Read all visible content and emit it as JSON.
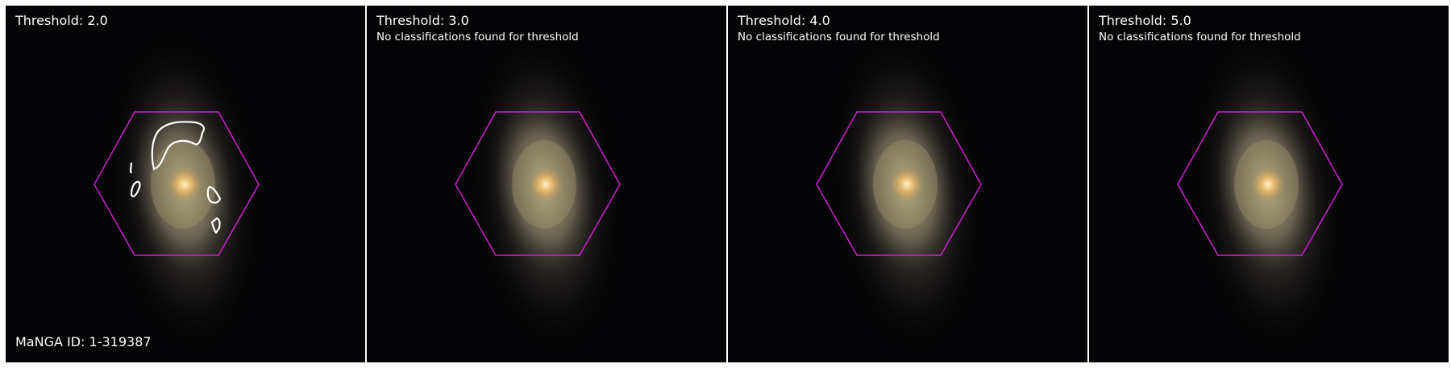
{
  "panels": [
    {
      "title": "Threshold: 2.0",
      "note": "",
      "footer": "MaNGA ID: 1-319387",
      "has_contours": true
    },
    {
      "title": "Threshold: 3.0",
      "note": "No classifications found for threshold",
      "has_contours": false
    },
    {
      "title": "Threshold: 4.0",
      "note": "No classifications found for threshold",
      "has_contours": false
    },
    {
      "title": "Threshold: 5.0",
      "note": "No classifications found for threshold",
      "has_contours": false
    }
  ],
  "colors": {
    "hexagon": "#d21ed2",
    "contour": "#ffffff",
    "background": "#040305"
  }
}
